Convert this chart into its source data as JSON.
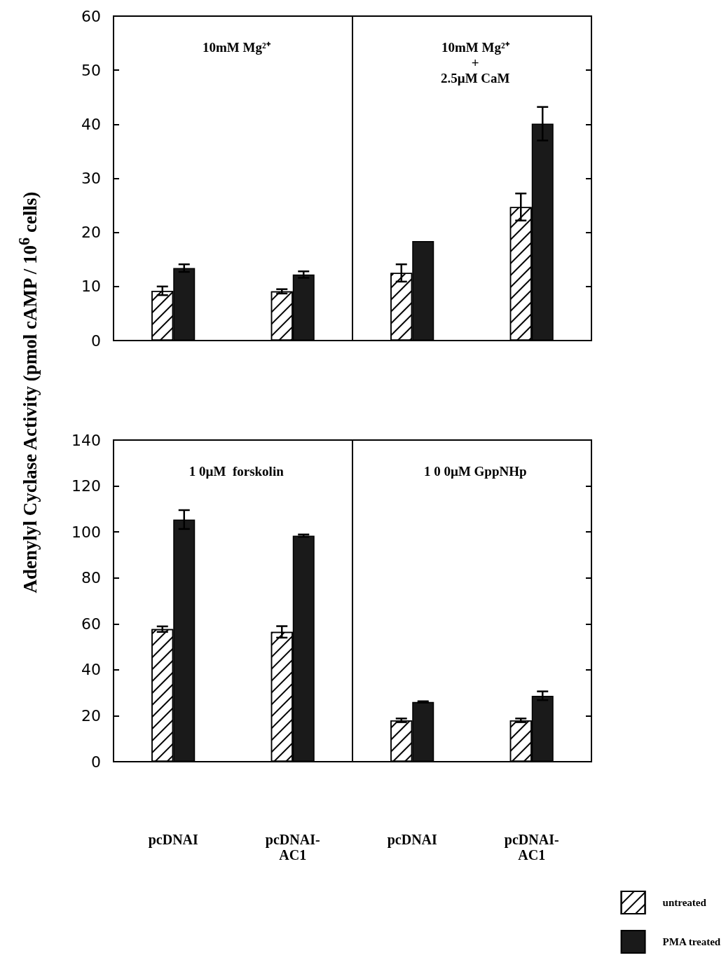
{
  "chart_data": [
    {
      "type": "bar",
      "annotations": [
        "10mM Mg²⁺",
        "10mM Mg²⁺\n+\n2.5µM CaM"
      ],
      "ylabel": "Adenylyl Cyclase Activity (pmol cAMP / 10$^{6}$ cells)",
      "categories": [
        null,
        null,
        null,
        null
      ],
      "ylim": [
        0,
        60
      ],
      "yticks": [
        0,
        10,
        20,
        30,
        40,
        50,
        60
      ],
      "tick_labels": "y",
      "series": [
        {
          "color": "#ffffff",
          "values": [
            9.2,
            9.1,
            12.5,
            24.7
          ],
          "errors": [
            0.8,
            0.4,
            1.6,
            2.5
          ]
        },
        {
          "color": "#1a1a1a",
          "values": [
            13.4,
            12.2,
            18.4,
            40.1
          ],
          "errors": [
            0.7,
            0.6,
            null,
            3.1
          ]
        }
      ]
    },
    {
      "type": "bar",
      "annotations": [
        "1 0µM  forskolin",
        "1 0 0µM GppNHp"
      ],
      "categories": [
        "pcDNAI",
        "pcDNAI-\nAC1",
        "pcDNAI",
        "pcDNAI-\nAC1"
      ],
      "ylim": [
        0,
        140
      ],
      "yticks": [
        0,
        20,
        40,
        60,
        80,
        100,
        120,
        140
      ],
      "legend": "bottom right",
      "series": [
        {
          "name": "untreated",
          "color": "#ffffff",
          "values": [
            57.7,
            56.5,
            18.0,
            18.0
          ],
          "errors": [
            1.2,
            2.5,
            0.8,
            0.8
          ]
        },
        {
          "name": "PMA treated",
          "color": "#1a1a1a",
          "values": [
            105.4,
            98.4,
            26.0,
            28.7
          ],
          "errors": [
            4.1,
            0.5,
            0.3,
            1.9
          ]
        }
      ]
    }
  ]
}
